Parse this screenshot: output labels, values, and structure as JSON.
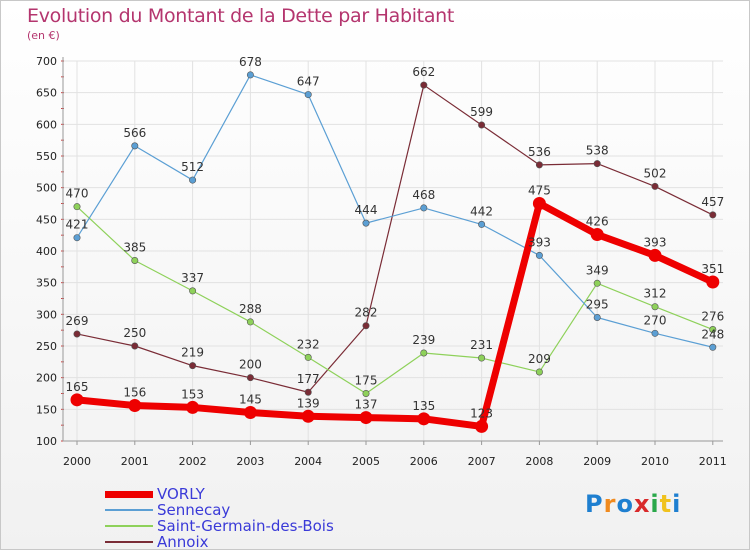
{
  "title": "Evolution du Montant de la Dette par Habitant",
  "unit": "(en €)",
  "logo": "Proxiti",
  "chart_data": {
    "type": "line",
    "x": [
      "2000",
      "2001",
      "2002",
      "2003",
      "2004",
      "2005",
      "2006",
      "2007",
      "2008",
      "2009",
      "2010",
      "2011"
    ],
    "ylim": [
      100,
      700
    ],
    "yticks": [
      "100",
      "150",
      "200",
      "250",
      "300",
      "350",
      "400",
      "450",
      "500",
      "550",
      "600",
      "650",
      "700"
    ],
    "grid": true,
    "legend_position": "bottom-left",
    "series": [
      {
        "name": "VORLY",
        "color": "#ee0000",
        "values": [
          165,
          156,
          153,
          145,
          139,
          137,
          135,
          123,
          475,
          426,
          393,
          351
        ]
      },
      {
        "name": "Sennecay",
        "color": "#5b9fd4",
        "values": [
          421,
          566,
          512,
          678,
          647,
          444,
          468,
          442,
          393,
          295,
          270,
          248
        ]
      },
      {
        "name": "Saint-Germain-des-Bois",
        "color": "#8ed15a",
        "values": [
          470,
          385,
          337,
          288,
          232,
          175,
          239,
          231,
          209,
          349,
          312,
          276
        ]
      },
      {
        "name": "Annoix",
        "color": "#7a2c36",
        "values": [
          269,
          250,
          219,
          200,
          177,
          282,
          662,
          599,
          536,
          538,
          502,
          457
        ]
      }
    ]
  }
}
